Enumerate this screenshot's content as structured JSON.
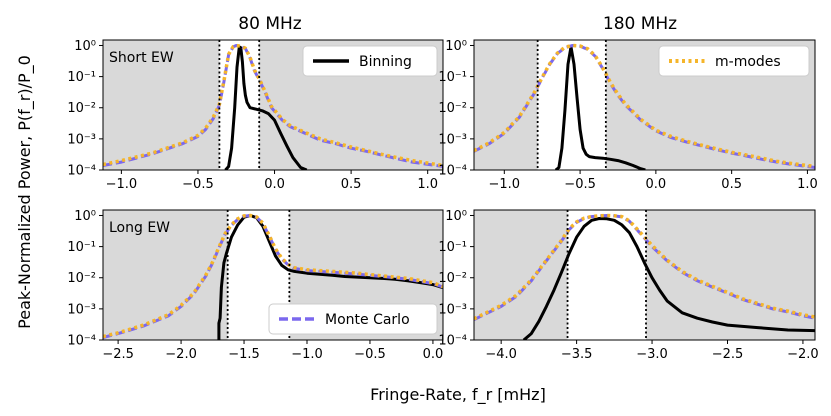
{
  "figure": {
    "ylabel": "Peak-Normalized Power, P(f_r)/P_0",
    "xlabel": "Fringe-Rate, f_r [mHz]"
  },
  "colors": {
    "background": "#d9d9d9",
    "window": "#ffffff",
    "binning": "#000000",
    "monte_carlo": "#7b68ee",
    "m_modes": "#f5b52a"
  },
  "chart_data": [
    {
      "type": "line",
      "id": "short-80",
      "title": "80 MHz",
      "annotation": "Short EW",
      "yscale": "log",
      "ylim": [
        0.0001,
        1.5
      ],
      "yticks": [
        0.0001,
        0.001,
        0.01,
        0.1,
        1
      ],
      "ytick_labels": [
        "10⁻⁴",
        "10⁻³",
        "10⁻²",
        "10⁻¹",
        "10⁰"
      ],
      "xlim": [
        -1.12,
        1.1
      ],
      "xticks": [
        -1.0,
        -0.5,
        0.0,
        0.5,
        1.0
      ],
      "xtick_labels": [
        "−1.0",
        "−0.5",
        "0.0",
        "0.5",
        "1.0"
      ],
      "window": [
        -0.36,
        -0.1
      ],
      "legend": {
        "entries": [
          "Binning"
        ],
        "position": "top-right"
      },
      "series": [
        {
          "name": "Binning",
          "style": "solid",
          "x": [
            -0.32,
            -0.3,
            -0.28,
            -0.26,
            -0.245,
            -0.23,
            -0.22,
            -0.21,
            -0.2,
            -0.19,
            -0.18,
            -0.16,
            -0.12,
            -0.08,
            -0.04,
            0.0,
            0.04,
            0.08,
            0.12,
            0.17,
            0.21
          ],
          "y": [
            0.0001,
            0.00013,
            0.0005,
            0.01,
            0.2,
            0.9,
            0.85,
            0.3,
            0.06,
            0.025,
            0.015,
            0.01,
            0.009,
            0.008,
            0.0065,
            0.004,
            0.0015,
            0.0006,
            0.00025,
            0.00012,
            0.0001
          ]
        },
        {
          "name": "Monte Carlo",
          "style": "dashed",
          "x": [
            -1.12,
            -1.0,
            -0.8,
            -0.6,
            -0.5,
            -0.45,
            -0.4,
            -0.36,
            -0.33,
            -0.3,
            -0.27,
            -0.25,
            -0.22,
            -0.19,
            -0.16,
            -0.13,
            -0.1,
            -0.06,
            -0.02,
            0.05,
            0.1,
            0.2,
            0.3,
            0.4,
            0.5,
            0.6,
            0.7,
            0.8,
            0.9,
            1.1
          ],
          "y": [
            0.00014,
            0.00018,
            0.00033,
            0.0007,
            0.0012,
            0.002,
            0.0045,
            0.012,
            0.07,
            0.5,
            0.9,
            1.0,
            0.92,
            0.8,
            0.4,
            0.15,
            0.08,
            0.03,
            0.01,
            0.004,
            0.0025,
            0.0015,
            0.0009,
            0.0007,
            0.0005,
            0.0004,
            0.0003,
            0.00023,
            0.00018,
            0.00013
          ]
        },
        {
          "name": "m-modes",
          "style": "dotted",
          "x": [
            -1.12,
            -1.0,
            -0.8,
            -0.6,
            -0.5,
            -0.45,
            -0.4,
            -0.36,
            -0.33,
            -0.3,
            -0.27,
            -0.25,
            -0.22,
            -0.19,
            -0.16,
            -0.13,
            -0.1,
            -0.06,
            -0.02,
            0.05,
            0.1,
            0.2,
            0.3,
            0.4,
            0.5,
            0.6,
            0.7,
            0.8,
            0.9,
            1.1
          ],
          "y": [
            0.00015,
            0.0002,
            0.00035,
            0.00075,
            0.0013,
            0.0022,
            0.005,
            0.013,
            0.075,
            0.52,
            0.92,
            1.0,
            0.95,
            0.82,
            0.42,
            0.16,
            0.085,
            0.032,
            0.011,
            0.0043,
            0.0027,
            0.0016,
            0.001,
            0.00075,
            0.00055,
            0.00042,
            0.00032,
            0.00025,
            0.0002,
            0.00014
          ]
        }
      ]
    },
    {
      "type": "line",
      "id": "short-180",
      "title": "180 MHz",
      "annotation": "",
      "yscale": "log",
      "ylim": [
        0.0001,
        1.5
      ],
      "yticks": [
        0.0001,
        0.001,
        0.01,
        0.1,
        1
      ],
      "ytick_labels": [
        "10⁻⁴",
        "10⁻³",
        "10⁻²",
        "10⁻¹",
        "10⁰"
      ],
      "xlim": [
        -1.2,
        1.05
      ],
      "xticks": [
        -1.0,
        -0.5,
        0.0,
        0.5,
        1.0
      ],
      "xtick_labels": [
        "−1.0",
        "−0.5",
        "0.0",
        "0.5",
        "1.0"
      ],
      "window": [
        -0.78,
        -0.33
      ],
      "legend": {
        "entries": [
          "m-modes"
        ],
        "position": "top-right"
      },
      "series": [
        {
          "name": "Binning",
          "style": "solid",
          "x": [
            -0.66,
            -0.64,
            -0.62,
            -0.6,
            -0.58,
            -0.56,
            -0.54,
            -0.52,
            -0.5,
            -0.48,
            -0.46,
            -0.44,
            -0.4,
            -0.35,
            -0.3,
            -0.25,
            -0.2,
            -0.15,
            -0.1,
            -0.07
          ],
          "y": [
            0.0001,
            0.00012,
            0.0005,
            0.008,
            0.25,
            0.9,
            0.25,
            0.02,
            0.002,
            0.0005,
            0.00032,
            0.00027,
            0.00025,
            0.00024,
            0.00022,
            0.0002,
            0.00017,
            0.00014,
            0.00011,
            0.0001
          ]
        },
        {
          "name": "Monte Carlo",
          "style": "dashed",
          "x": [
            -1.2,
            -1.1,
            -1.0,
            -0.9,
            -0.8,
            -0.75,
            -0.7,
            -0.65,
            -0.6,
            -0.55,
            -0.5,
            -0.45,
            -0.4,
            -0.35,
            -0.3,
            -0.25,
            -0.2,
            -0.1,
            0.0,
            0.1,
            0.2,
            0.3,
            0.4,
            0.5,
            0.6,
            0.7,
            0.8,
            0.9,
            1.05
          ],
          "y": [
            0.0004,
            0.0007,
            0.0015,
            0.005,
            0.03,
            0.09,
            0.25,
            0.55,
            0.85,
            1.0,
            0.95,
            0.75,
            0.45,
            0.18,
            0.06,
            0.025,
            0.012,
            0.004,
            0.0018,
            0.0011,
            0.0008,
            0.0006,
            0.00045,
            0.00035,
            0.00028,
            0.00022,
            0.00018,
            0.00015,
            0.00012
          ]
        },
        {
          "name": "m-modes",
          "style": "dotted",
          "x": [
            -1.2,
            -1.1,
            -1.0,
            -0.9,
            -0.8,
            -0.75,
            -0.7,
            -0.65,
            -0.6,
            -0.55,
            -0.5,
            -0.45,
            -0.4,
            -0.35,
            -0.3,
            -0.25,
            -0.2,
            -0.1,
            0.0,
            0.1,
            0.2,
            0.3,
            0.4,
            0.5,
            0.6,
            0.7,
            0.8,
            0.9,
            1.05
          ],
          "y": [
            0.00042,
            0.00075,
            0.0016,
            0.0053,
            0.032,
            0.095,
            0.26,
            0.57,
            0.88,
            1.0,
            0.96,
            0.78,
            0.47,
            0.19,
            0.065,
            0.027,
            0.013,
            0.0043,
            0.0019,
            0.0012,
            0.00085,
            0.00063,
            0.00048,
            0.00037,
            0.0003,
            0.00024,
            0.00019,
            0.00016,
            0.00013
          ]
        }
      ]
    },
    {
      "type": "line",
      "id": "long-80",
      "title": "",
      "annotation": "Long EW",
      "yscale": "log",
      "ylim": [
        0.0001,
        1.5
      ],
      "yticks": [
        0.0001,
        0.001,
        0.01,
        0.1,
        1
      ],
      "ytick_labels": [
        "10⁻⁴",
        "10⁻³",
        "10⁻²",
        "10⁻¹",
        "10⁰"
      ],
      "xlim": [
        -2.62,
        0.08
      ],
      "xticks": [
        -2.5,
        -2.0,
        -1.5,
        -1.0,
        -0.5,
        0.0
      ],
      "xtick_labels": [
        "−2.5",
        "−2.0",
        "−1.5",
        "−1.0",
        "−0.5",
        "0.0"
      ],
      "window": [
        -1.63,
        -1.14
      ],
      "legend": {
        "entries": [
          "Monte Carlo"
        ],
        "position": "bottom-right"
      },
      "series": [
        {
          "name": "Binning",
          "style": "solid",
          "x": [
            -1.7,
            -1.7,
            -1.69,
            -1.68,
            -1.66,
            -1.64,
            -1.6,
            -1.55,
            -1.5,
            -1.45,
            -1.4,
            -1.35,
            -1.3,
            -1.25,
            -1.2,
            -1.15,
            -1.1,
            -1.0,
            -0.9,
            -0.8,
            -0.7,
            -0.6,
            -0.5,
            -0.4,
            -0.3,
            -0.2,
            -0.1,
            0.0,
            0.08
          ],
          "y": [
            0.0001,
            0.00035,
            0.0005,
            0.005,
            0.03,
            0.06,
            0.2,
            0.5,
            0.88,
            1.0,
            0.85,
            0.45,
            0.15,
            0.05,
            0.025,
            0.018,
            0.016,
            0.014,
            0.013,
            0.012,
            0.011,
            0.0105,
            0.01,
            0.0095,
            0.009,
            0.008,
            0.007,
            0.006,
            0.0048
          ]
        },
        {
          "name": "Monte Carlo",
          "style": "dashed",
          "x": [
            -2.62,
            -2.5,
            -2.3,
            -2.1,
            -2.0,
            -1.9,
            -1.8,
            -1.75,
            -1.7,
            -1.65,
            -1.6,
            -1.55,
            -1.5,
            -1.45,
            -1.4,
            -1.35,
            -1.3,
            -1.25,
            -1.2,
            -1.15,
            -1.1,
            -1.0,
            -0.8,
            -0.6,
            -0.4,
            -0.2,
            0.0,
            0.08
          ],
          "y": [
            0.00012,
            0.00016,
            0.00028,
            0.0006,
            0.0012,
            0.003,
            0.012,
            0.03,
            0.09,
            0.25,
            0.48,
            0.75,
            0.95,
            1.0,
            0.88,
            0.55,
            0.22,
            0.08,
            0.04,
            0.026,
            0.02,
            0.017,
            0.015,
            0.013,
            0.011,
            0.009,
            0.0065,
            0.005
          ]
        },
        {
          "name": "m-modes",
          "style": "dotted",
          "x": [
            -2.62,
            -2.5,
            -2.3,
            -2.1,
            -2.0,
            -1.9,
            -1.8,
            -1.75,
            -1.7,
            -1.65,
            -1.6,
            -1.55,
            -1.5,
            -1.45,
            -1.4,
            -1.35,
            -1.3,
            -1.25,
            -1.2,
            -1.15,
            -1.1,
            -1.0,
            -0.8,
            -0.6,
            -0.4,
            -0.2,
            0.0,
            0.08
          ],
          "y": [
            0.00013,
            0.00017,
            0.0003,
            0.00065,
            0.0013,
            0.0032,
            0.013,
            0.032,
            0.095,
            0.26,
            0.5,
            0.78,
            0.97,
            1.0,
            0.9,
            0.57,
            0.23,
            0.085,
            0.042,
            0.027,
            0.021,
            0.018,
            0.016,
            0.014,
            0.0115,
            0.0095,
            0.007,
            0.0052
          ]
        }
      ]
    },
    {
      "type": "line",
      "id": "long-180",
      "title": "",
      "annotation": "",
      "yscale": "log",
      "ylim": [
        0.0001,
        1.5
      ],
      "yticks": [
        0.0001,
        0.001,
        0.01,
        0.1,
        1
      ],
      "ytick_labels": [
        "10⁻⁴",
        "10⁻³",
        "10⁻²",
        "10⁻¹",
        "10⁰"
      ],
      "xlim": [
        -4.18,
        -1.92
      ],
      "xticks": [
        -4.0,
        -3.5,
        -3.0,
        -2.5,
        -2.0
      ],
      "xtick_labels": [
        "−4.0",
        "−3.5",
        "−3.0",
        "−2.5",
        "−2.0"
      ],
      "window": [
        -3.56,
        -3.04
      ],
      "legend": {
        "entries": [],
        "position": ""
      },
      "series": [
        {
          "name": "Binning",
          "style": "solid",
          "x": [
            -3.85,
            -3.8,
            -3.75,
            -3.7,
            -3.65,
            -3.6,
            -3.55,
            -3.5,
            -3.45,
            -3.4,
            -3.35,
            -3.3,
            -3.25,
            -3.2,
            -3.15,
            -3.1,
            -3.05,
            -3.0,
            -2.95,
            -2.9,
            -2.8,
            -2.7,
            -2.6,
            -2.5,
            -2.3,
            -2.1,
            -1.92
          ],
          "y": [
            0.0001,
            0.00016,
            0.0004,
            0.0012,
            0.004,
            0.015,
            0.06,
            0.2,
            0.45,
            0.7,
            0.8,
            0.78,
            0.7,
            0.5,
            0.28,
            0.1,
            0.03,
            0.01,
            0.004,
            0.0018,
            0.00075,
            0.0005,
            0.00038,
            0.0003,
            0.00025,
            0.00021,
            0.0002
          ]
        },
        {
          "name": "Monte Carlo",
          "style": "dashed",
          "x": [
            -4.18,
            -4.1,
            -4.0,
            -3.9,
            -3.8,
            -3.7,
            -3.6,
            -3.55,
            -3.5,
            -3.45,
            -3.4,
            -3.35,
            -3.3,
            -3.25,
            -3.2,
            -3.15,
            -3.1,
            -3.0,
            -2.9,
            -2.8,
            -2.7,
            -2.6,
            -2.5,
            -2.4,
            -2.3,
            -2.2,
            -2.1,
            -2.0,
            -1.92
          ],
          "y": [
            0.00045,
            0.0007,
            0.0012,
            0.0025,
            0.008,
            0.035,
            0.15,
            0.35,
            0.6,
            0.8,
            0.92,
            0.97,
            1.0,
            0.97,
            0.9,
            0.65,
            0.35,
            0.1,
            0.035,
            0.015,
            0.008,
            0.005,
            0.0032,
            0.002,
            0.0014,
            0.001,
            0.0008,
            0.0006,
            0.0005
          ]
        },
        {
          "name": "m-modes",
          "style": "dotted",
          "x": [
            -4.18,
            -4.1,
            -4.0,
            -3.9,
            -3.8,
            -3.7,
            -3.6,
            -3.55,
            -3.5,
            -3.45,
            -3.4,
            -3.35,
            -3.3,
            -3.25,
            -3.2,
            -3.15,
            -3.1,
            -3.0,
            -2.9,
            -2.8,
            -2.7,
            -2.6,
            -2.5,
            -2.4,
            -2.3,
            -2.2,
            -2.1,
            -2.0,
            -1.92
          ],
          "y": [
            0.00048,
            0.00075,
            0.0013,
            0.0027,
            0.0085,
            0.037,
            0.16,
            0.37,
            0.62,
            0.82,
            0.93,
            0.98,
            1.0,
            0.98,
            0.92,
            0.67,
            0.37,
            0.11,
            0.037,
            0.016,
            0.0085,
            0.0053,
            0.0034,
            0.0021,
            0.0015,
            0.00105,
            0.00085,
            0.00065,
            0.00055
          ]
        }
      ]
    }
  ]
}
